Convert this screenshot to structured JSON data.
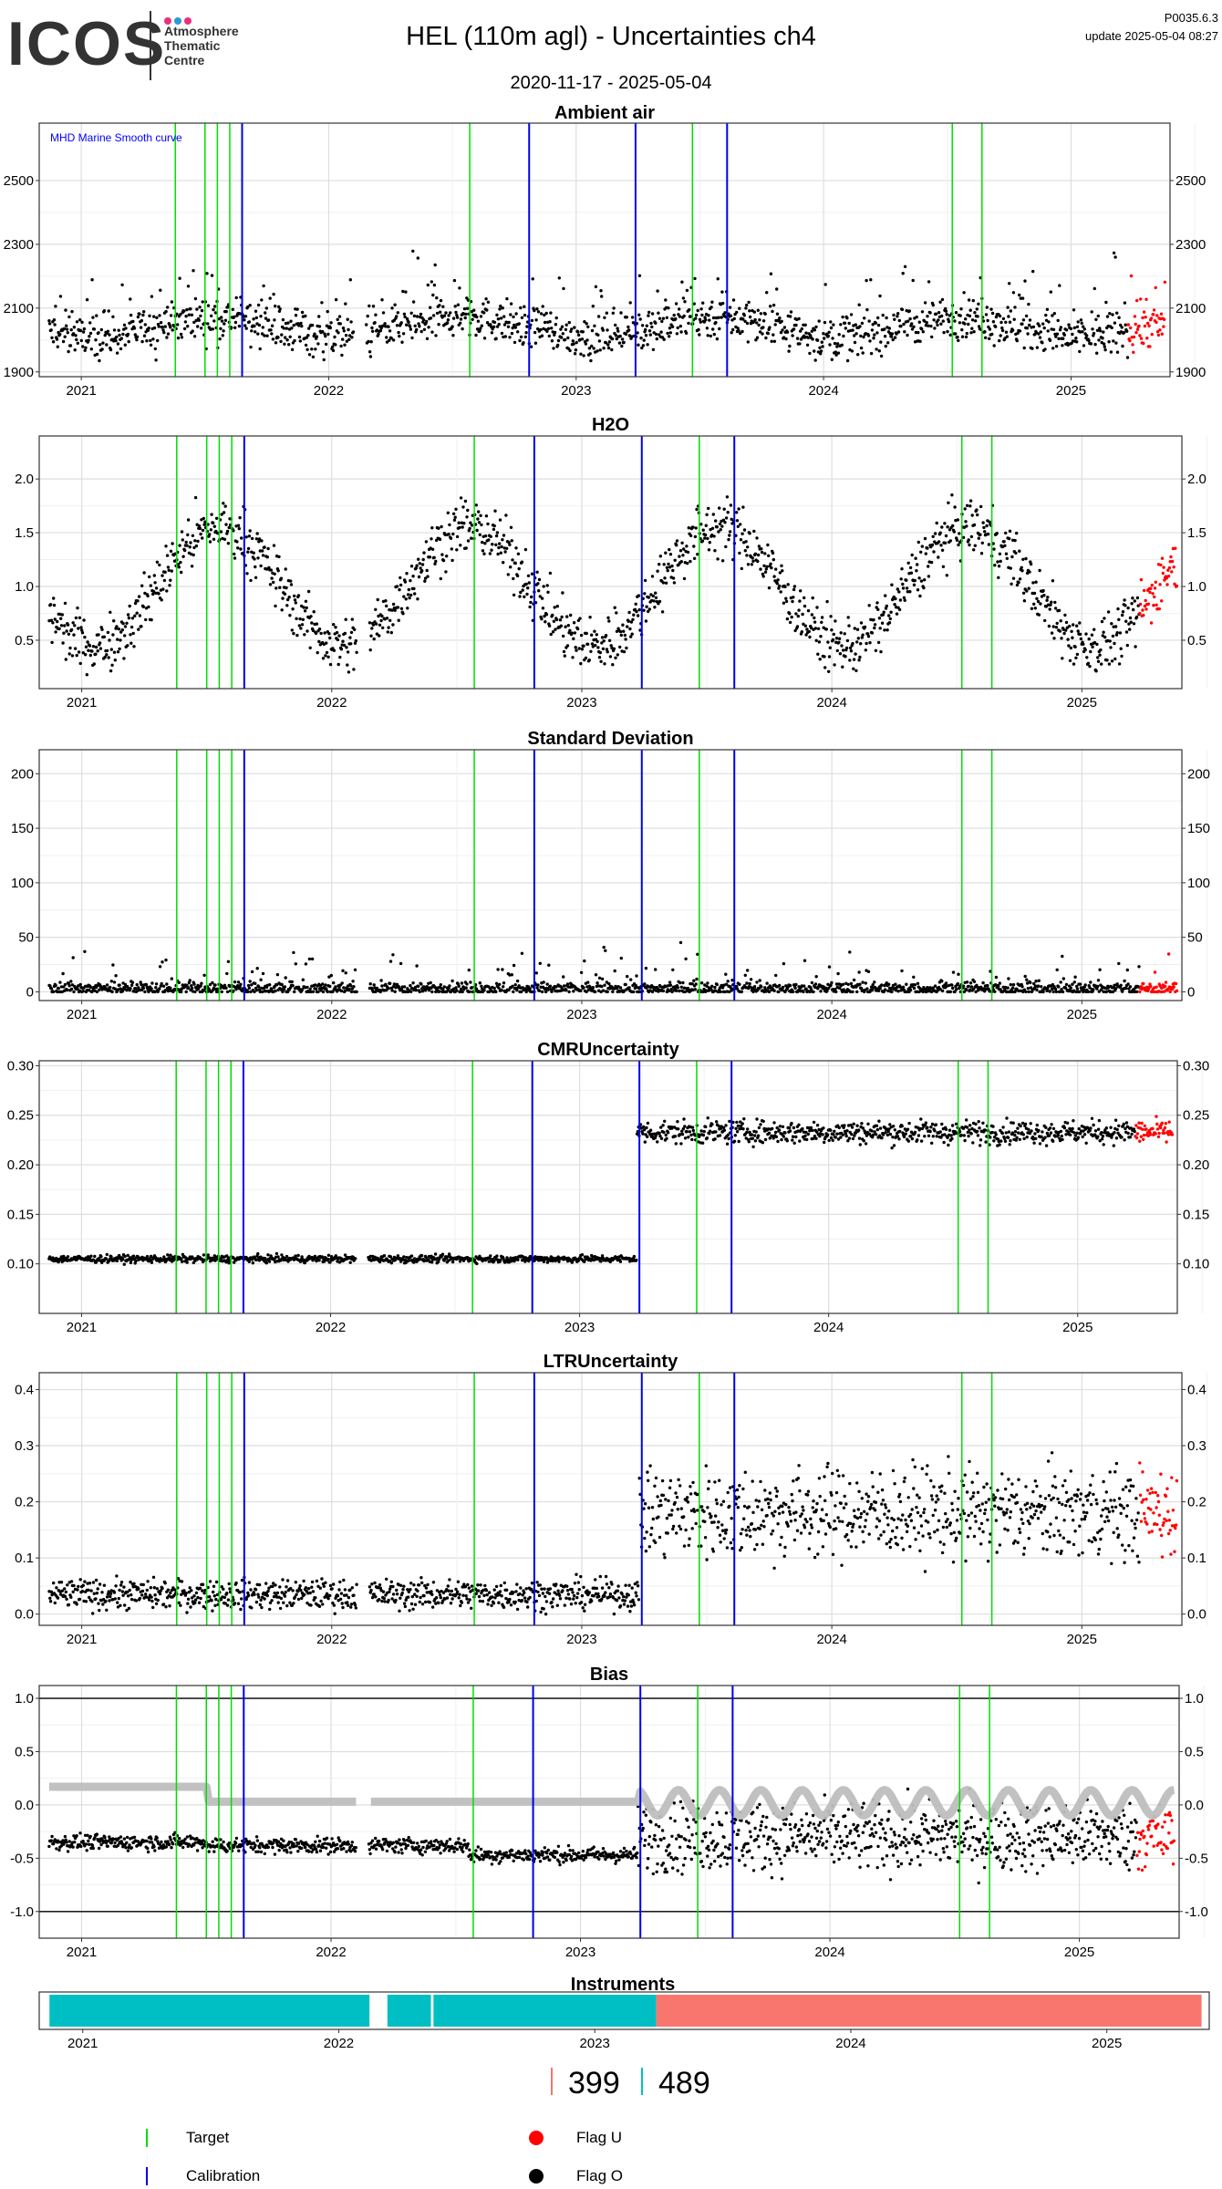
{
  "header": {
    "logo": "ICOS",
    "logo_subtitle": [
      "Atmosphere",
      "Thematic",
      "Centre"
    ],
    "logo_dot_colors": [
      "#e8307c",
      "#2a9bd8",
      "#e8307c"
    ],
    "title": "HEL  (110m agl) - Uncertainties ch4",
    "subtitle": "2020-11-17 - 2025-05-04",
    "version": "P0035.6.3",
    "update": "update  2025-05-04 08:27"
  },
  "chart_data": [
    {
      "type": "scatter",
      "id": "ambient",
      "title": "Ambient air",
      "annotation": "MHD Marine Smooth curve",
      "annotation_color": "#0000ff",
      "ylim": [
        1885,
        2680
      ],
      "yticks": [
        1900,
        2100,
        2300,
        2500
      ],
      "gen": {
        "base": 2040,
        "seasonal": 30,
        "noise": 45,
        "spike_prob": 0.12,
        "spike_scale": 250,
        "min": 1935,
        "max": 2600
      }
    },
    {
      "type": "scatter",
      "id": "h2o",
      "title": "H2O",
      "ylim": [
        0.05,
        2.4
      ],
      "yticks": [
        0.5,
        1.0,
        1.5,
        2.0
      ],
      "gen": {
        "base": 1.0,
        "seasonal": 0.55,
        "noise": 0.18,
        "min": 0.18,
        "max": 2.3
      }
    },
    {
      "type": "scatter",
      "id": "stdev",
      "title": "Standard Deviation",
      "ylim": [
        -8,
        222
      ],
      "yticks": [
        0,
        50,
        100,
        150,
        200
      ],
      "gen": {
        "base": 3,
        "noise": 4,
        "spike_prob": 0.12,
        "spike_scale": 40,
        "min": 0,
        "max": 215
      }
    },
    {
      "type": "scatter",
      "id": "cmr",
      "title": "CMRUncertainty",
      "ylim": [
        0.05,
        0.305
      ],
      "yticks": [
        0.1,
        0.15,
        0.2,
        0.25,
        0.3
      ],
      "gen": {
        "levels": [
          {
            "until": 2023.23,
            "base": 0.105,
            "noise": 0.0025
          },
          {
            "until": 2026,
            "base": 0.233,
            "noise": 0.008
          }
        ]
      }
    },
    {
      "type": "scatter",
      "id": "ltr",
      "title": "LTRUncertainty",
      "ylim": [
        -0.02,
        0.43
      ],
      "yticks": [
        0.0,
        0.1,
        0.2,
        0.3,
        0.4
      ],
      "gen": {
        "levels": [
          {
            "until": 2023.23,
            "base": 0.035,
            "noise": 0.018
          },
          {
            "until": 2026,
            "base": 0.18,
            "noise": 0.055
          }
        ]
      }
    },
    {
      "type": "scatter",
      "id": "bias",
      "title": "Bias",
      "ylim": [
        -1.25,
        1.12
      ],
      "yticks": [
        -1.0,
        -0.5,
        0.0,
        0.5,
        1.0
      ],
      "hlines": [
        -1.0,
        1.0
      ],
      "smooth_color": "#bebebe",
      "gen": {
        "levels": [
          {
            "until": 2021.5,
            "base": -0.35,
            "noise": 0.05
          },
          {
            "until": 2022.55,
            "base": -0.38,
            "noise": 0.05
          },
          {
            "until": 2023.23,
            "base": -0.47,
            "noise": 0.05
          },
          {
            "until": 2026,
            "base": -0.3,
            "noise": 0.22
          }
        ]
      }
    }
  ],
  "x_axis": {
    "min": 2020.83,
    "max": 2025.4,
    "ticks": [
      2021,
      2022,
      2023,
      2024,
      2025
    ],
    "tick_labels": [
      "2021",
      "2022",
      "2023",
      "2024",
      "2025"
    ]
  },
  "gaps": [
    [
      2022.1,
      2022.15
    ]
  ],
  "red_start": 2025.23,
  "target_lines": [
    2021.38,
    2021.5,
    2021.55,
    2021.6,
    2022.57,
    2023.47,
    2024.52,
    2024.64
  ],
  "calibration_lines": [
    2021.65,
    2022.81,
    2023.24,
    2023.61
  ],
  "colors": {
    "target": "#00dd00",
    "calibration": "#0000ee",
    "flag_u": "#ff0000",
    "flag_o": "#000000",
    "instr_a": "#00bfc4",
    "instr_b": "#f8766d"
  },
  "instruments": {
    "title": "Instruments",
    "segments": [
      {
        "start": 2020.87,
        "end": 2022.12,
        "color": "#00bfc4"
      },
      {
        "start": 2022.19,
        "end": 2022.36,
        "color": "#00bfc4"
      },
      {
        "start": 2022.37,
        "end": 2023.24,
        "color": "#00bfc4"
      },
      {
        "start": 2023.24,
        "end": 2025.37,
        "color": "#f8766d"
      }
    ],
    "ids": [
      {
        "label": "399",
        "color": "#f8766d"
      },
      {
        "label": "489",
        "color": "#00bfc4"
      }
    ]
  },
  "legend": {
    "target": "Target",
    "calibration": "Calibration",
    "flag_u": "Flag U",
    "flag_o": "Flag O"
  }
}
